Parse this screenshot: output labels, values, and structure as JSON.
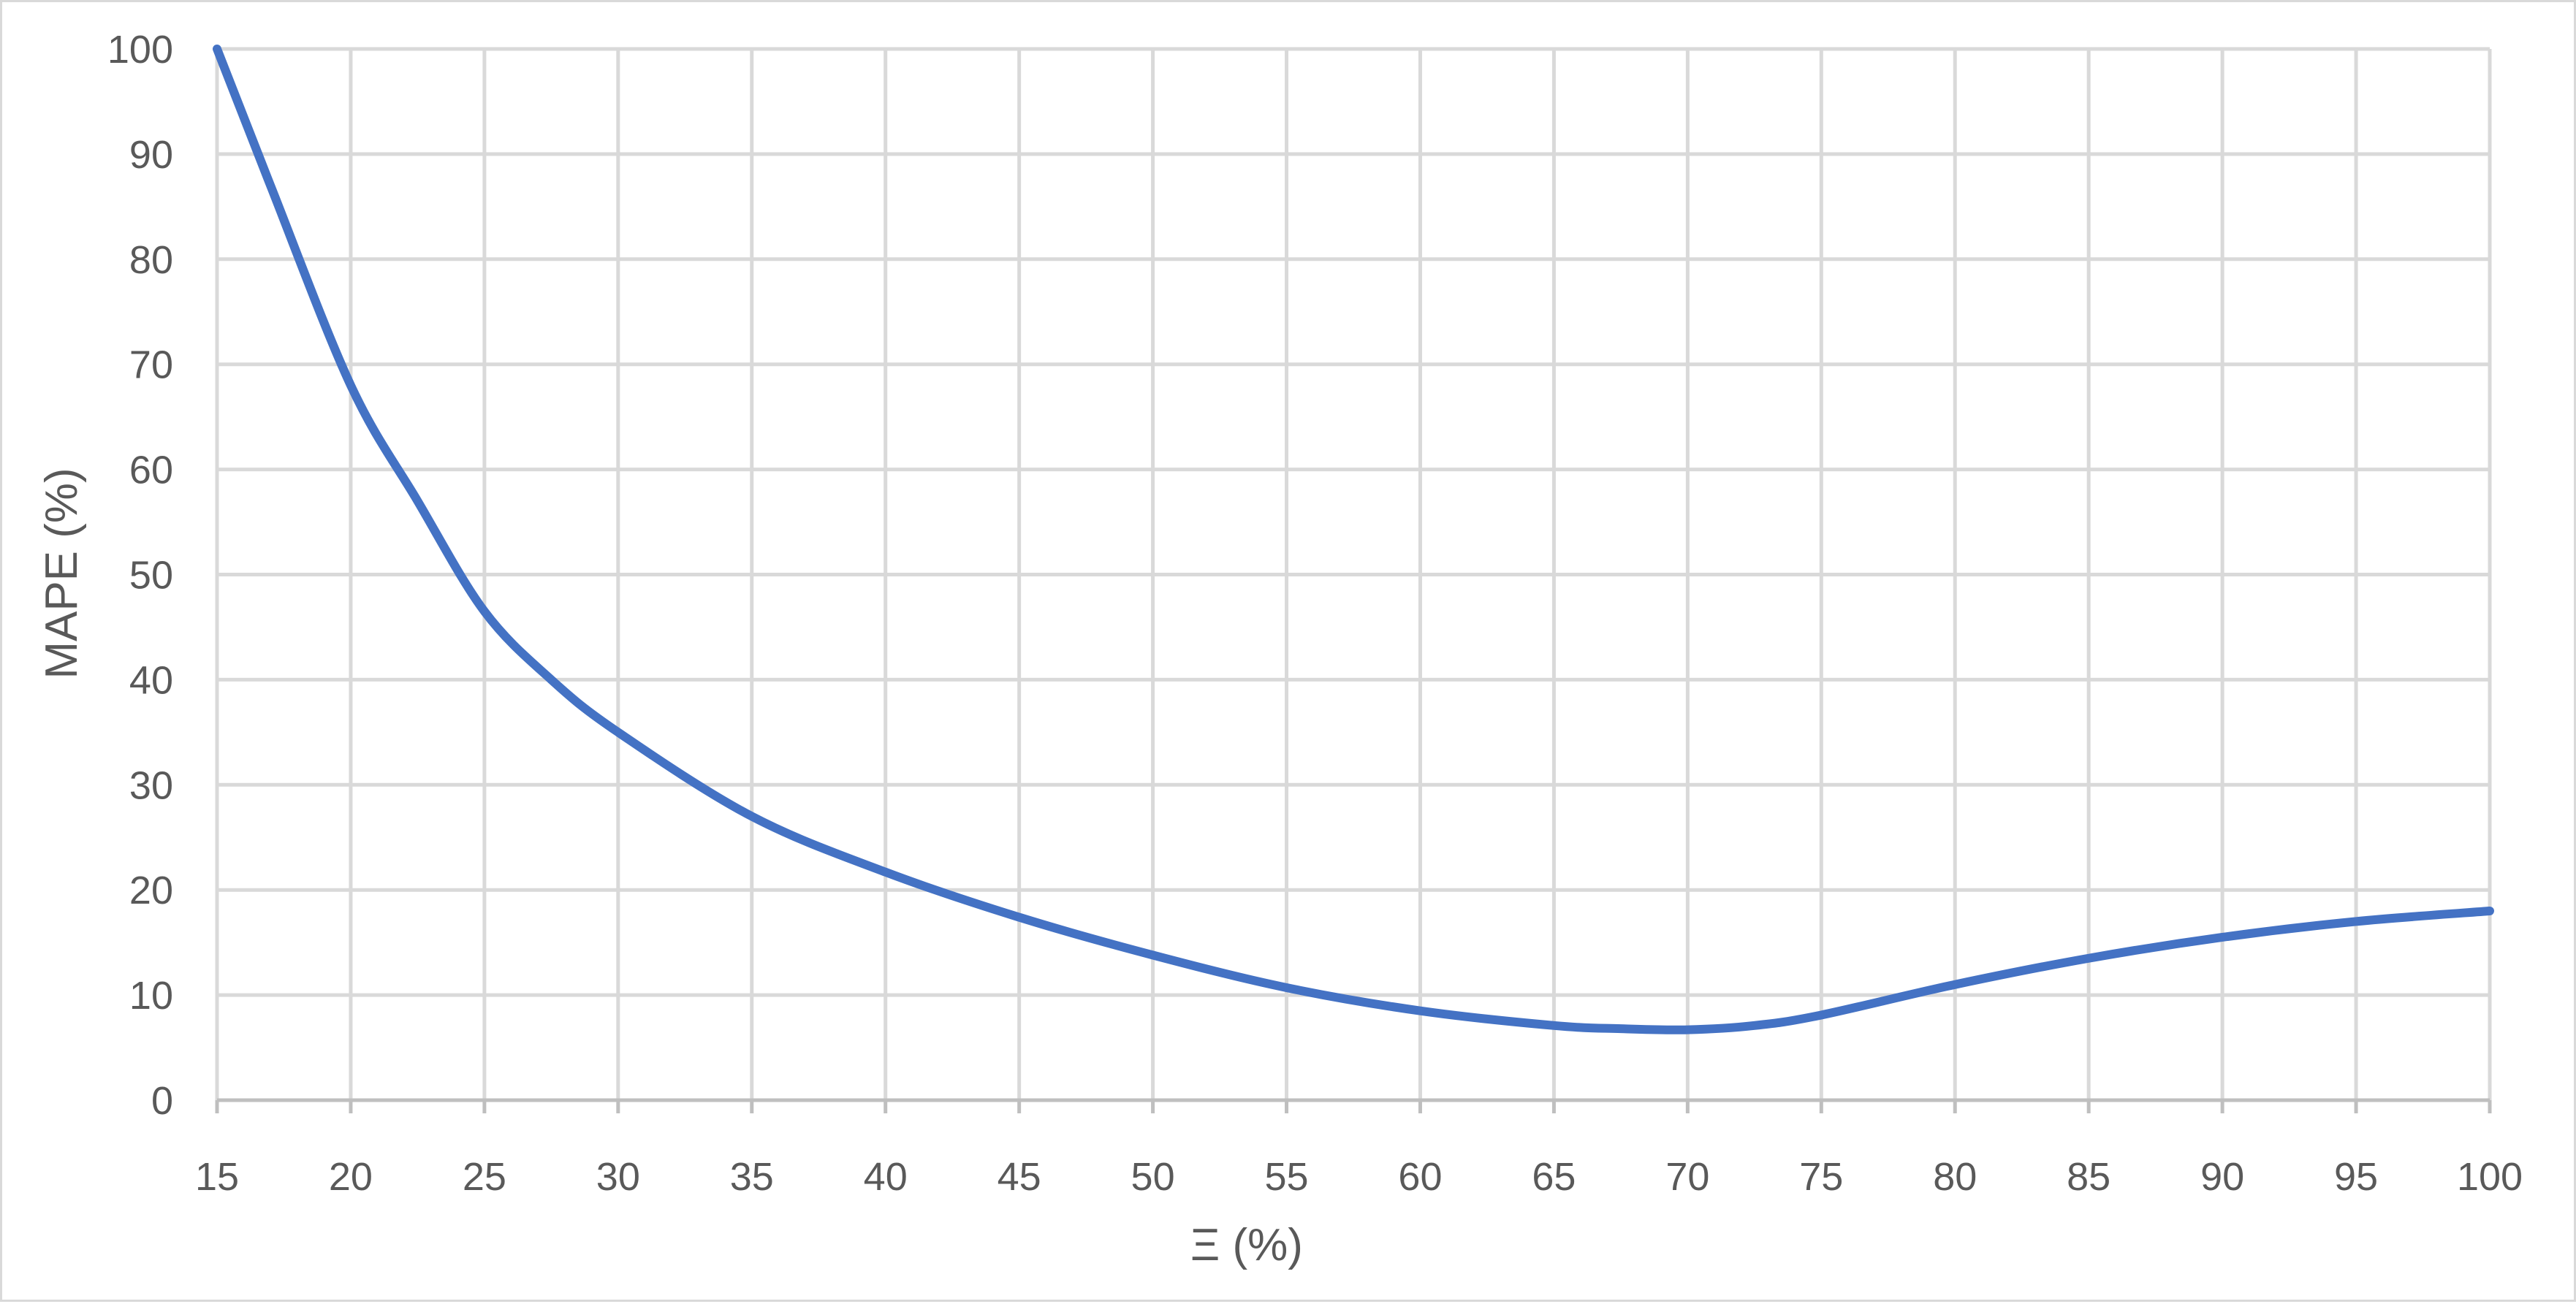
{
  "chart_data": {
    "type": "line",
    "title": "",
    "xlabel": "Ξ (%)",
    "ylabel": "MAPE (%)",
    "xlim": [
      15,
      100
    ],
    "ylim": [
      0,
      100
    ],
    "x_ticks": [
      15,
      20,
      25,
      30,
      35,
      40,
      45,
      50,
      55,
      60,
      65,
      70,
      75,
      80,
      85,
      90,
      95,
      100
    ],
    "y_ticks": [
      0,
      10,
      20,
      30,
      40,
      50,
      60,
      70,
      80,
      90,
      100
    ],
    "grid": true,
    "legend": "none",
    "series": [
      {
        "color": "#4472C4",
        "x": [
          15,
          17,
          20,
          22.5,
          25,
          27.5,
          30,
          35,
          40,
          45,
          50,
          55,
          60,
          65,
          67.5,
          70,
          72.5,
          75,
          80,
          85,
          90,
          95,
          100
        ],
        "y": [
          100,
          87,
          68,
          57,
          46.5,
          40,
          35,
          27,
          21.7,
          17.4,
          13.8,
          10.7,
          8.5,
          7.1,
          6.8,
          6.7,
          7.1,
          8.1,
          11,
          13.5,
          15.5,
          17,
          18
        ]
      }
    ]
  },
  "colors": {
    "grid": "#d9d9d9",
    "frame": "#d9d9d9",
    "text": "#595959"
  }
}
